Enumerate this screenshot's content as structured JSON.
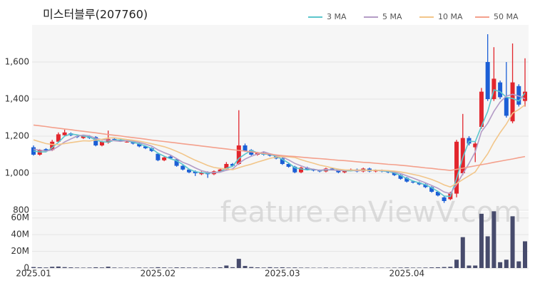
{
  "watermark": "feature.enViewV.com",
  "chart_data": [
    {
      "type": "candlestick",
      "title": "미스터블루(207760)",
      "up_color": "#e2262d",
      "down_color": "#1c5fd6",
      "categories": [
        "2025.01",
        null,
        null,
        null,
        null,
        null,
        null,
        null,
        null,
        null,
        null,
        null,
        null,
        null,
        null,
        null,
        null,
        null,
        null,
        null,
        "2025.02",
        null,
        null,
        null,
        null,
        null,
        null,
        null,
        null,
        null,
        null,
        null,
        null,
        null,
        null,
        null,
        null,
        null,
        null,
        null,
        "2025.03",
        null,
        null,
        null,
        null,
        null,
        null,
        null,
        null,
        null,
        null,
        null,
        null,
        null,
        null,
        null,
        null,
        null,
        null,
        null,
        "2025.04",
        null,
        null,
        null,
        null,
        null,
        null,
        null,
        null,
        null,
        null,
        null,
        null,
        null,
        null,
        null,
        null,
        null,
        null,
        null
      ],
      "open": [
        1140,
        1100,
        1130,
        1125,
        1170,
        1205,
        1215,
        1200,
        1190,
        1200,
        1195,
        1150,
        1165,
        1185,
        1180,
        1170,
        1175,
        1160,
        1145,
        1135,
        1105,
        1070,
        1090,
        1075,
        1040,
        1020,
        1010,
        995,
        1005,
        995,
        1010,
        1020,
        1050,
        1050,
        1150,
        1125,
        1100,
        1110,
        1100,
        1095,
        1080,
        1050,
        1035,
        1005,
        1030,
        1020,
        1015,
        1010,
        1025,
        1020,
        1005,
        1015,
        1020,
        1010,
        1025,
        1010,
        1015,
        1010,
        1005,
        990,
        975,
        955,
        950,
        940,
        925,
        900,
        870,
        860,
        890,
        1000,
        1190,
        1140,
        1250,
        1600,
        1400,
        1490,
        1410,
        1280,
        1470,
        1390
      ],
      "high": [
        1150,
        1130,
        1135,
        1180,
        1220,
        1235,
        1220,
        1205,
        1205,
        1205,
        1200,
        1175,
        1230,
        1190,
        1185,
        1180,
        1180,
        1165,
        1150,
        1140,
        1110,
        1090,
        1095,
        1080,
        1045,
        1025,
        1015,
        1010,
        1010,
        1015,
        1025,
        1060,
        1055,
        1340,
        1160,
        1130,
        1115,
        1115,
        1105,
        1100,
        1085,
        1055,
        1040,
        1035,
        1035,
        1025,
        1020,
        1030,
        1030,
        1025,
        1020,
        1025,
        1025,
        1030,
        1030,
        1020,
        1020,
        1015,
        1010,
        995,
        980,
        960,
        955,
        945,
        930,
        905,
        875,
        900,
        1180,
        1320,
        1200,
        1170,
        1460,
        1750,
        1680,
        1500,
        1600,
        1700,
        1480,
        1620
      ],
      "low": [
        1095,
        1095,
        1115,
        1120,
        1165,
        1200,
        1200,
        1190,
        1185,
        1185,
        1145,
        1145,
        1160,
        1175,
        1170,
        1165,
        1155,
        1140,
        1130,
        1115,
        1065,
        1065,
        1075,
        1035,
        1015,
        1000,
        985,
        990,
        975,
        990,
        1005,
        1015,
        1035,
        1045,
        1115,
        1095,
        1095,
        1095,
        1090,
        1075,
        1045,
        1030,
        1000,
        1000,
        1015,
        1010,
        1005,
        1005,
        1015,
        1000,
        1000,
        1010,
        1005,
        1005,
        1005,
        1005,
        1005,
        1000,
        985,
        965,
        950,
        945,
        935,
        920,
        895,
        875,
        840,
        855,
        870,
        990,
        1150,
        1060,
        1240,
        1390,
        1390,
        1400,
        1300,
        1270,
        1360,
        1360
      ],
      "close": [
        1100,
        1125,
        1120,
        1170,
        1210,
        1220,
        1205,
        1195,
        1200,
        1190,
        1150,
        1170,
        1185,
        1180,
        1175,
        1170,
        1160,
        1145,
        1135,
        1120,
        1070,
        1085,
        1080,
        1040,
        1020,
        1005,
        1000,
        1005,
        995,
        1010,
        1020,
        1050,
        1040,
        1150,
        1120,
        1100,
        1110,
        1100,
        1095,
        1080,
        1050,
        1035,
        1005,
        1030,
        1020,
        1015,
        1010,
        1025,
        1020,
        1005,
        1015,
        1020,
        1010,
        1025,
        1010,
        1015,
        1010,
        1005,
        990,
        970,
        955,
        950,
        940,
        925,
        900,
        880,
        850,
        895,
        1170,
        1190,
        1160,
        1160,
        1440,
        1400,
        1510,
        1410,
        1310,
        1490,
        1370,
        1440
      ],
      "series": [
        {
          "name": "3 MA",
          "color": "#5cc6cc",
          "values": [
            1120,
            1115,
            1115,
            1138,
            1167,
            1200,
            1212,
            1207,
            1200,
            1195,
            1180,
            1170,
            1168,
            1178,
            1180,
            1175,
            1168,
            1158,
            1147,
            1133,
            1108,
            1092,
            1078,
            1068,
            1047,
            1022,
            1008,
            1003,
            1000,
            1003,
            1008,
            1027,
            1037,
            1080,
            1103,
            1123,
            1110,
            1103,
            1102,
            1092,
            1075,
            1055,
            1030,
            1023,
            1018,
            1022,
            1015,
            1017,
            1018,
            1017,
            1013,
            1013,
            1015,
            1018,
            1015,
            1017,
            1012,
            1010,
            1002,
            988,
            972,
            958,
            948,
            938,
            922,
            902,
            877,
            875,
            972,
            1085,
            1173,
            1170,
            1253,
            1333,
            1450,
            1440,
            1410,
            1403,
            1390,
            1433
          ]
        },
        {
          "name": "5 MA",
          "color": "#b49cc6",
          "values": [
            1130,
            1125,
            1120,
            1125,
            1145,
            1169,
            1185,
            1200,
            1206,
            1202,
            1188,
            1181,
            1179,
            1175,
            1172,
            1176,
            1174,
            1166,
            1157,
            1146,
            1126,
            1111,
            1098,
            1079,
            1059,
            1046,
            1029,
            1014,
            1005,
            1003,
            1006,
            1016,
            1023,
            1054,
            1076,
            1092,
            1104,
            1116,
            1105,
            1097,
            1087,
            1072,
            1053,
            1040,
            1028,
            1021,
            1016,
            1020,
            1018,
            1015,
            1015,
            1017,
            1014,
            1015,
            1016,
            1016,
            1014,
            1013,
            1006,
            998,
            986,
            974,
            961,
            948,
            934,
            919,
            899,
            890,
            939,
            997,
            1053,
            1115,
            1224,
            1270,
            1334,
            1384,
            1416,
            1426,
            1416,
            1402
          ]
        },
        {
          "name": "10 MA",
          "color": "#f2c68a",
          "values": [
            1180,
            1170,
            1160,
            1155,
            1155,
            1160,
            1165,
            1170,
            1175,
            1174,
            1179,
            1183,
            1190,
            1191,
            1187,
            1182,
            1178,
            1173,
            1166,
            1159,
            1151,
            1143,
            1132,
            1118,
            1103,
            1086,
            1070,
            1056,
            1042,
            1031,
            1026,
            1023,
            1019,
            1030,
            1040,
            1049,
            1060,
            1070,
            1080,
            1087,
            1090,
            1088,
            1085,
            1073,
            1063,
            1054,
            1044,
            1037,
            1029,
            1022,
            1018,
            1017,
            1017,
            1017,
            1016,
            1016,
            1016,
            1014,
            1011,
            1007,
            1001,
            994,
            987,
            977,
            966,
            953,
            937,
            926,
            944,
            966,
            986,
            1007,
            1057,
            1105,
            1166,
            1219,
            1265,
            1324,
            1344,
            1369
          ]
        },
        {
          "name": "50 MA",
          "color": "#f4a08c",
          "values": [
            1260,
            1256,
            1252,
            1247,
            1243,
            1239,
            1235,
            1230,
            1226,
            1222,
            1218,
            1213,
            1209,
            1205,
            1201,
            1196,
            1192,
            1188,
            1184,
            1179,
            1175,
            1171,
            1167,
            1163,
            1159,
            1155,
            1151,
            1147,
            1143,
            1139,
            1135,
            1131,
            1127,
            1123,
            1119,
            1115,
            1111,
            1107,
            1103,
            1099,
            1095,
            1092,
            1090,
            1087,
            1084,
            1081,
            1079,
            1076,
            1073,
            1070,
            1068,
            1065,
            1062,
            1059,
            1057,
            1054,
            1051,
            1048,
            1046,
            1043,
            1040,
            1036,
            1033,
            1029,
            1026,
            1022,
            1019,
            1015,
            1021,
            1027,
            1034,
            1040,
            1046,
            1052,
            1059,
            1065,
            1071,
            1077,
            1084,
            1090
          ]
        }
      ],
      "ylim": [
        800,
        1800
      ],
      "yticks": [
        800,
        {
          "value": 1000,
          "label": "1,000"
        },
        {
          "value": 1200,
          "label": "1,200"
        },
        {
          "value": 1400,
          "label": "1,400"
        },
        {
          "value": 1600,
          "label": "1,600"
        }
      ],
      "grid": true
    },
    {
      "type": "bar",
      "color": "#474b6c",
      "values": [
        1200000,
        900000,
        700000,
        1500000,
        1800000,
        1100000,
        800000,
        600000,
        500000,
        600000,
        900000,
        700000,
        1600000,
        600000,
        500000,
        500000,
        500000,
        600000,
        500000,
        600000,
        1000000,
        700000,
        500000,
        800000,
        700000,
        600000,
        600000,
        500000,
        700000,
        600000,
        900000,
        3000000,
        1000000,
        11000000,
        2500000,
        1200000,
        800000,
        600000,
        1000000,
        700000,
        900000,
        600000,
        700000,
        500000,
        500000,
        400000,
        400000,
        500000,
        400000,
        400000,
        400000,
        400000,
        400000,
        500000,
        400000,
        400000,
        400000,
        400000,
        500000,
        600000,
        700000,
        500000,
        500000,
        600000,
        800000,
        900000,
        1200000,
        1500000,
        10000000,
        37000000,
        3000000,
        3000000,
        65000000,
        38000000,
        68000000,
        7000000,
        10000000,
        62000000,
        8000000,
        32000000
      ],
      "ylim": [
        0,
        70000000
      ],
      "yticks": [
        0,
        {
          "value": 20000000,
          "label": "20M"
        },
        {
          "value": 40000000,
          "label": "40M"
        },
        {
          "value": 60000000,
          "label": "60M"
        }
      ]
    }
  ]
}
